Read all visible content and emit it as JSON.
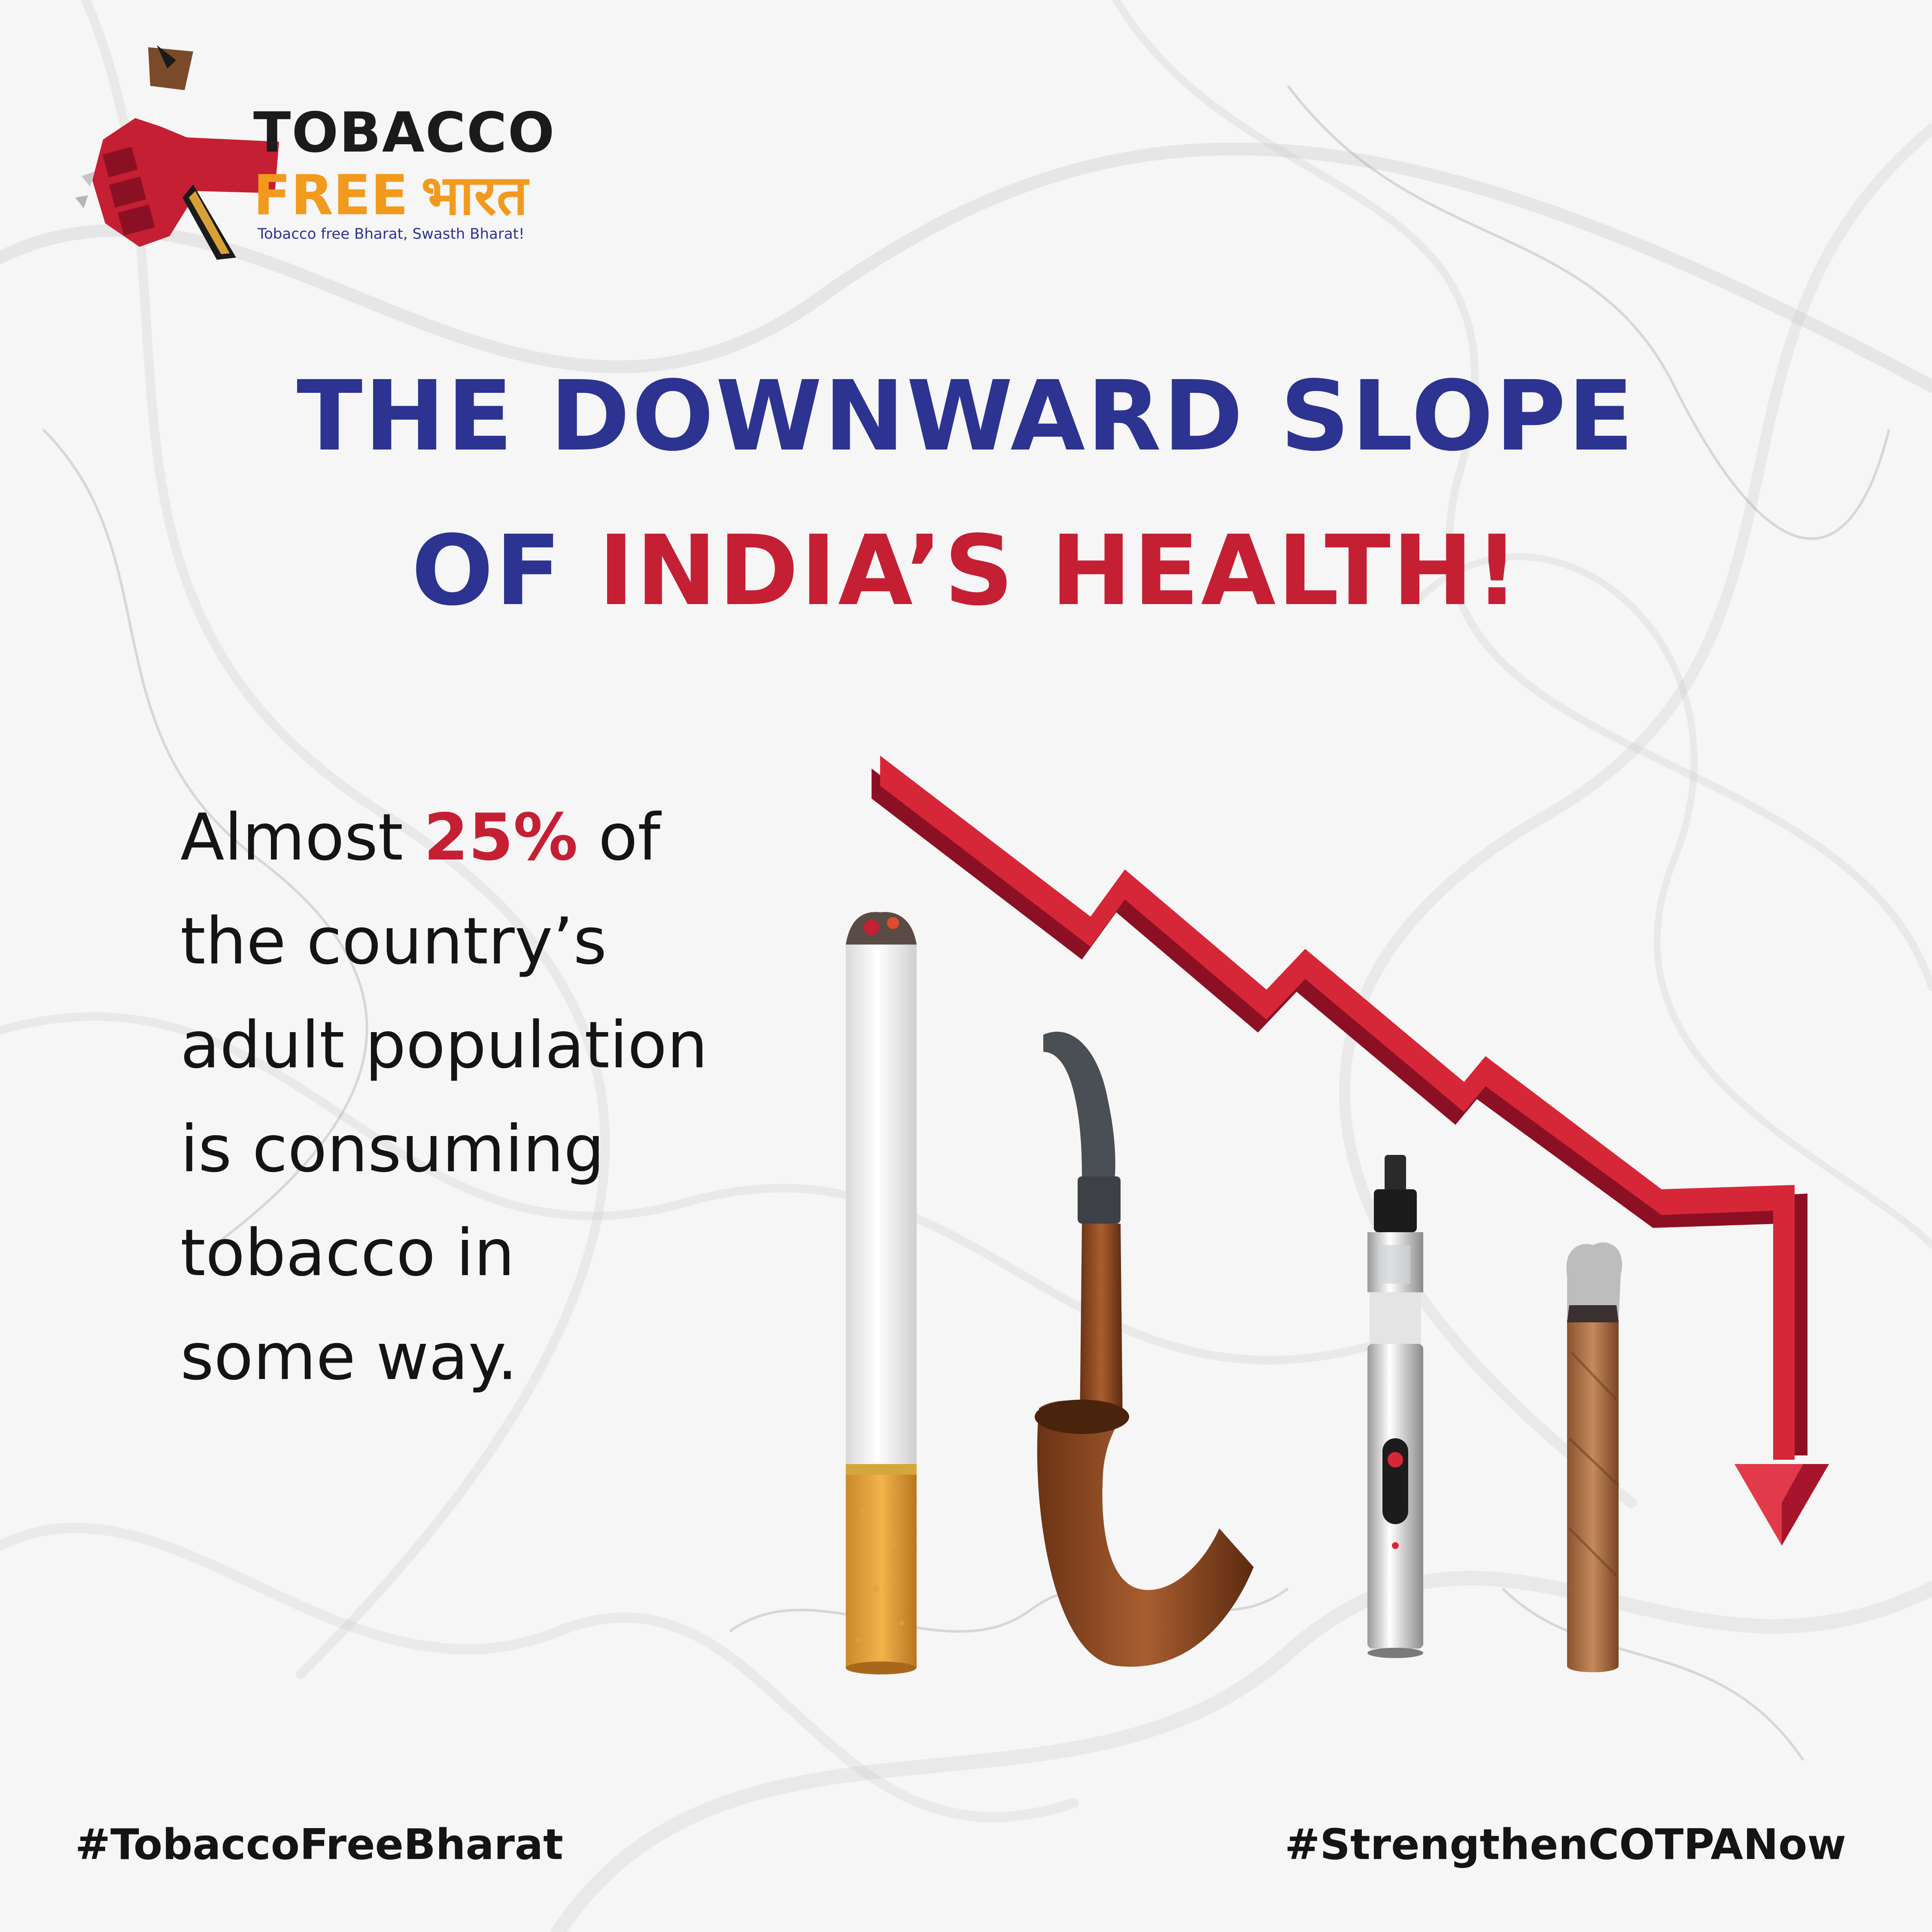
{
  "logo": {
    "line1": "TOBACCO",
    "line2_a": "FREE",
    "line2_b": "भारत",
    "tagline": "Tobacco free Bharat, Swasth Bharat!"
  },
  "headline": {
    "line1": "THE DOWNWARD SLOPE",
    "line2_a": "OF",
    "line2_b": "INDIA’S HEALTH!"
  },
  "statement": {
    "pre": "Almost",
    "highlight": "25%",
    "post": "of",
    "line2": "the country’s",
    "line3": "adult population",
    "line4": "is consuming",
    "line5": "tobacco in",
    "line6": "some way."
  },
  "hashtags": {
    "left": "#TobaccoFreeBharat",
    "right": "#StrengthenCOTPANow"
  },
  "colors": {
    "brand_blue": "#2c3391",
    "brand_red": "#c51f34",
    "brand_orange": "#f29a1e",
    "text_dark": "#141414"
  },
  "icons": [
    "fist-logo-icon",
    "cigarette-icon",
    "pipe-icon",
    "vape-pen-icon",
    "cigar-icon",
    "downward-trend-arrow-icon"
  ]
}
